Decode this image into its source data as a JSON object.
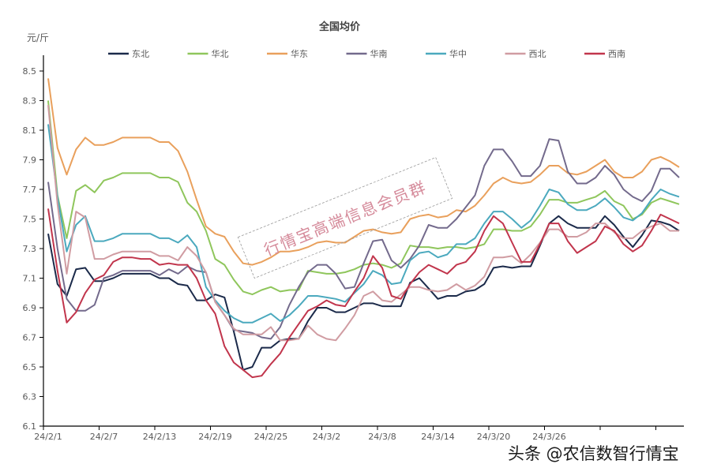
{
  "chart_data": {
    "type": "line",
    "title": "全国均价",
    "ylabel": "元/斤",
    "xlabel": "",
    "ylim": [
      6.1,
      8.5
    ],
    "yticks": [
      6.1,
      6.3,
      6.5,
      6.7,
      6.9,
      7.1,
      7.3,
      7.5,
      7.7,
      7.9,
      8.1,
      8.3,
      8.5
    ],
    "xtick_labels": [
      "24/2/1",
      "24/2/7",
      "24/2/13",
      "24/2/19",
      "24/2/25",
      "24/3/2",
      "24/3/8",
      "24/3/14",
      "24/3/20",
      "24/3/26"
    ],
    "xtick_every": 6,
    "points": 69,
    "grid": false,
    "legend_position": "top",
    "series": [
      {
        "name": "东北",
        "color": "#1b2a4a",
        "values": [
          7.4,
          7.06,
          6.98,
          7.16,
          7.17,
          7.08,
          7.08,
          7.1,
          7.13,
          7.13,
          7.13,
          7.13,
          7.1,
          7.1,
          7.06,
          7.05,
          6.95,
          6.95,
          6.99,
          6.97,
          6.74,
          6.48,
          6.5,
          6.63,
          6.63,
          6.68,
          6.69,
          6.69,
          6.81,
          6.9,
          6.9,
          6.87,
          6.87,
          6.9,
          6.93,
          6.93,
          6.91,
          6.91,
          6.91,
          7.07,
          7.1,
          7.03,
          6.96,
          6.98,
          6.98,
          7.01,
          7.02,
          7.06,
          7.17,
          7.18,
          7.17,
          7.18,
          7.18,
          7.32,
          7.47,
          7.52,
          7.47,
          7.44,
          7.44,
          7.44,
          7.52,
          7.46,
          7.38,
          7.31,
          7.39,
          7.49,
          7.48,
          7.46,
          7.42
        ]
      },
      {
        "name": "华北",
        "color": "#8fc65c",
        "values": [
          8.3,
          7.66,
          7.37,
          7.69,
          7.73,
          7.68,
          7.76,
          7.78,
          7.81,
          7.81,
          7.81,
          7.81,
          7.78,
          7.78,
          7.75,
          7.61,
          7.55,
          7.42,
          7.23,
          7.19,
          7.09,
          7.01,
          6.99,
          7.02,
          7.04,
          7.01,
          7.02,
          7.02,
          7.15,
          7.14,
          7.13,
          7.13,
          7.14,
          7.16,
          7.19,
          7.2,
          7.19,
          7.17,
          7.2,
          7.32,
          7.31,
          7.31,
          7.3,
          7.31,
          7.31,
          7.3,
          7.31,
          7.33,
          7.43,
          7.43,
          7.42,
          7.42,
          7.45,
          7.53,
          7.63,
          7.63,
          7.61,
          7.61,
          7.63,
          7.65,
          7.69,
          7.62,
          7.59,
          7.5,
          7.53,
          7.61,
          7.64,
          7.62,
          7.6
        ]
      },
      {
        "name": "华东",
        "color": "#e9a05c",
        "values": [
          8.45,
          7.98,
          7.8,
          7.97,
          8.05,
          8.0,
          8.0,
          8.02,
          8.05,
          8.05,
          8.05,
          8.05,
          8.02,
          8.02,
          7.96,
          7.82,
          7.63,
          7.45,
          7.4,
          7.38,
          7.28,
          7.2,
          7.19,
          7.21,
          7.24,
          7.28,
          7.28,
          7.29,
          7.31,
          7.34,
          7.35,
          7.34,
          7.34,
          7.38,
          7.42,
          7.43,
          7.41,
          7.4,
          7.41,
          7.5,
          7.52,
          7.53,
          7.51,
          7.52,
          7.56,
          7.55,
          7.59,
          7.66,
          7.74,
          7.78,
          7.75,
          7.74,
          7.75,
          7.8,
          7.86,
          7.86,
          7.81,
          7.8,
          7.82,
          7.86,
          7.9,
          7.82,
          7.78,
          7.78,
          7.82,
          7.9,
          7.92,
          7.89,
          7.85
        ]
      },
      {
        "name": "华南",
        "color": "#736a8c",
        "values": [
          7.75,
          7.3,
          6.96,
          6.88,
          6.88,
          6.92,
          7.1,
          7.12,
          7.15,
          7.15,
          7.15,
          7.15,
          7.12,
          7.16,
          7.13,
          7.18,
          7.15,
          7.14,
          6.94,
          6.85,
          6.75,
          6.74,
          6.73,
          6.7,
          6.69,
          6.77,
          6.92,
          7.04,
          7.14,
          7.19,
          7.19,
          7.13,
          7.03,
          7.04,
          7.2,
          7.35,
          7.36,
          7.22,
          7.17,
          7.23,
          7.32,
          7.46,
          7.44,
          7.44,
          7.5,
          7.58,
          7.66,
          7.86,
          7.97,
          7.97,
          7.89,
          7.79,
          7.79,
          7.86,
          8.04,
          8.03,
          7.82,
          7.74,
          7.74,
          7.78,
          7.86,
          7.8,
          7.7,
          7.65,
          7.62,
          7.69,
          7.84,
          7.84,
          7.78
        ]
      },
      {
        "name": "华中",
        "color": "#4ba9be",
        "values": [
          8.14,
          7.65,
          7.28,
          7.46,
          7.52,
          7.35,
          7.35,
          7.37,
          7.4,
          7.4,
          7.4,
          7.4,
          7.37,
          7.37,
          7.34,
          7.39,
          7.31,
          7.04,
          6.95,
          6.88,
          6.83,
          6.8,
          6.8,
          6.83,
          6.86,
          6.81,
          6.85,
          6.91,
          6.98,
          6.98,
          6.97,
          6.96,
          6.94,
          7.0,
          7.06,
          7.15,
          7.12,
          7.06,
          7.07,
          7.22,
          7.27,
          7.28,
          7.24,
          7.26,
          7.33,
          7.33,
          7.37,
          7.47,
          7.55,
          7.55,
          7.5,
          7.44,
          7.49,
          7.59,
          7.7,
          7.68,
          7.6,
          7.56,
          7.56,
          7.59,
          7.64,
          7.58,
          7.51,
          7.49,
          7.54,
          7.63,
          7.7,
          7.67,
          7.65
        ]
      },
      {
        "name": "西北",
        "color": "#d09ca2",
        "values": [
          8.27,
          7.6,
          7.13,
          7.55,
          7.51,
          7.23,
          7.23,
          7.26,
          7.28,
          7.28,
          7.28,
          7.28,
          7.25,
          7.25,
          7.22,
          7.31,
          7.25,
          7.14,
          6.94,
          6.85,
          6.76,
          6.72,
          6.72,
          6.72,
          6.77,
          6.68,
          6.68,
          6.69,
          6.78,
          6.72,
          6.69,
          6.68,
          6.76,
          6.85,
          6.98,
          7.01,
          6.95,
          6.94,
          6.99,
          7.04,
          7.04,
          7.02,
          7.01,
          7.02,
          7.06,
          7.02,
          7.05,
          7.11,
          7.24,
          7.24,
          7.25,
          7.2,
          7.26,
          7.34,
          7.43,
          7.43,
          7.38,
          7.38,
          7.41,
          7.47,
          7.47,
          7.41,
          7.37,
          7.37,
          7.42,
          7.45,
          7.47,
          7.42,
          7.42
        ]
      },
      {
        "name": "西南",
        "color": "#c1354c",
        "values": [
          7.57,
          7.15,
          6.8,
          6.87,
          7.0,
          7.09,
          7.12,
          7.21,
          7.24,
          7.24,
          7.23,
          7.23,
          7.19,
          7.2,
          7.19,
          7.19,
          7.1,
          6.95,
          6.86,
          6.64,
          6.53,
          6.48,
          6.43,
          6.44,
          6.52,
          6.59,
          6.7,
          6.79,
          6.88,
          6.91,
          6.95,
          6.92,
          6.91,
          7.01,
          7.1,
          7.25,
          7.17,
          6.98,
          6.96,
          7.06,
          7.14,
          7.19,
          7.16,
          7.13,
          7.19,
          7.21,
          7.28,
          7.42,
          7.52,
          7.47,
          7.34,
          7.21,
          7.21,
          7.33,
          7.47,
          7.47,
          7.35,
          7.27,
          7.31,
          7.35,
          7.45,
          7.42,
          7.33,
          7.28,
          7.32,
          7.42,
          7.53,
          7.5,
          7.47
        ]
      }
    ]
  },
  "watermarks": {
    "center": "行情宝高端信息会员群",
    "bottom_right": "头条 @农信数智行情宝"
  }
}
